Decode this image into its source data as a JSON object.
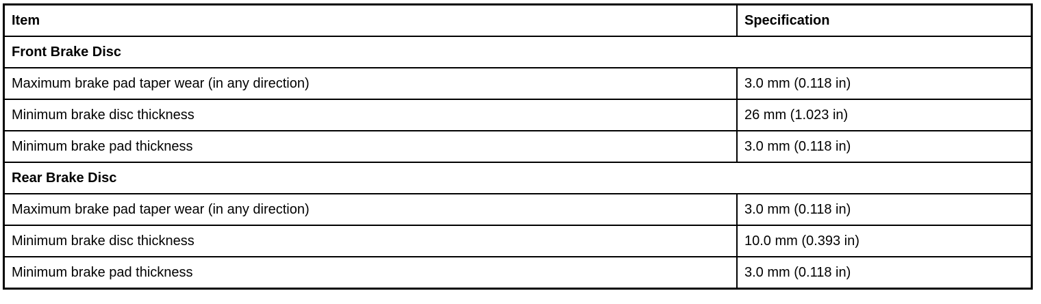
{
  "table": {
    "headers": [
      "Item",
      "Specification"
    ],
    "sections": [
      {
        "title": "Front Brake Disc",
        "rows": [
          {
            "item": "Maximum brake pad taper wear (in any direction)",
            "spec": "3.0 mm (0.118 in)"
          },
          {
            "item": "Minimum brake disc thickness",
            "spec": "26 mm (1.023 in)"
          },
          {
            "item": "Minimum brake pad thickness",
            "spec": "3.0 mm (0.118 in)"
          }
        ]
      },
      {
        "title": "Rear Brake Disc",
        "rows": [
          {
            "item": "Maximum brake pad taper wear (in any direction)",
            "spec": "3.0 mm (0.118 in)"
          },
          {
            "item": "Minimum brake disc thickness",
            "spec": "10.0 mm (0.393 in)"
          },
          {
            "item": "Minimum brake pad thickness",
            "spec": "3.0 mm (0.118 in)"
          }
        ]
      }
    ]
  }
}
